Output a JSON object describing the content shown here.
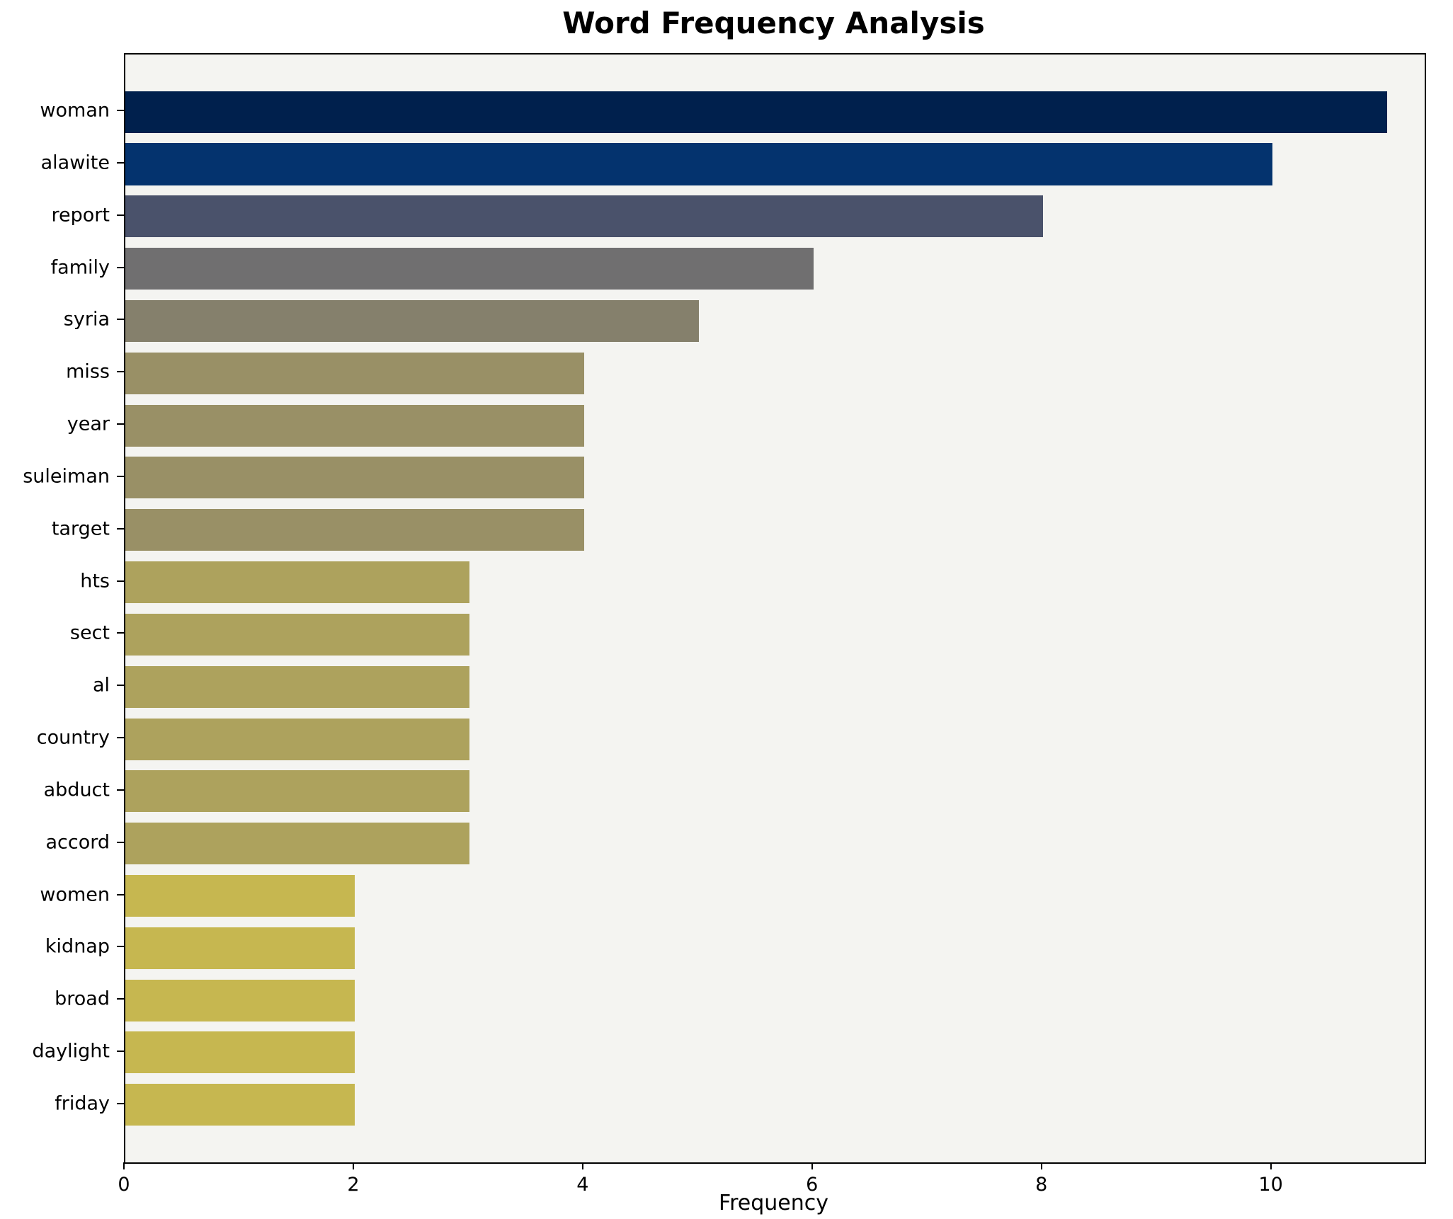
{
  "chart_data": {
    "type": "bar",
    "orientation": "horizontal",
    "title": "Word Frequency Analysis",
    "xlabel": "Frequency",
    "ylabel": "",
    "categories": [
      "woman",
      "alawite",
      "report",
      "family",
      "syria",
      "miss",
      "year",
      "suleiman",
      "target",
      "hts",
      "sect",
      "al",
      "country",
      "abduct",
      "accord",
      "women",
      "kidnap",
      "broad",
      "daylight",
      "friday"
    ],
    "values": [
      11,
      10,
      8,
      6,
      5,
      4,
      4,
      4,
      4,
      3,
      3,
      3,
      3,
      3,
      3,
      2,
      2,
      2,
      2,
      2
    ],
    "bar_colors": [
      "#00204d",
      "#04336e",
      "#4a526b",
      "#706f70",
      "#85806c",
      "#999066",
      "#999066",
      "#999066",
      "#999066",
      "#ada25d",
      "#ada25d",
      "#ada25d",
      "#ada25d",
      "#ada25d",
      "#ada25d",
      "#c6b750",
      "#c6b750",
      "#c6b750",
      "#c6b750",
      "#c6b750"
    ],
    "xlim": [
      0,
      11.33
    ],
    "xticks": [
      0,
      2,
      4,
      6,
      8,
      10
    ],
    "grid": false,
    "legend": null,
    "plot_bg": "#f4f4f1",
    "fig_bg": "#ffffff",
    "text_color": "#000000"
  }
}
